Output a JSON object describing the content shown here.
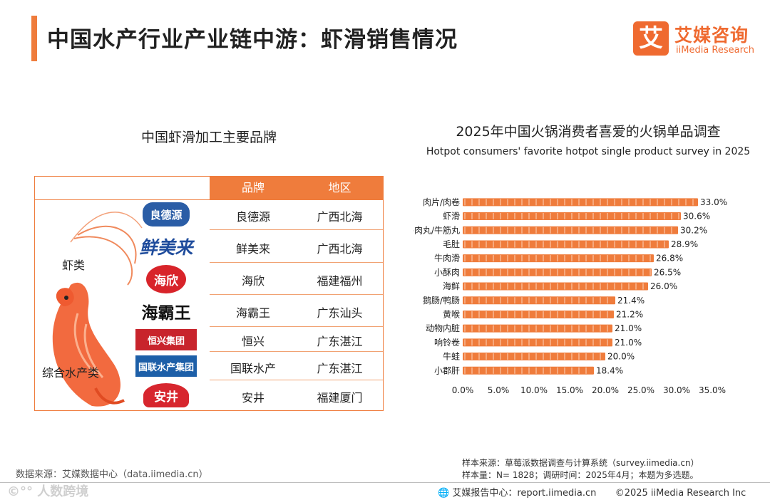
{
  "page": {
    "title": "中国水产行业产业链中游：虾滑销售情况",
    "logo_mark": "艾",
    "logo_cn": "艾媒咨询",
    "logo_en": "iiMedia Research"
  },
  "brands_table": {
    "title": "中国虾滑加工主要品牌",
    "headers": {
      "brand": "品牌",
      "region": "地区"
    },
    "categories": {
      "shrimp": "虾类",
      "aquatic": "综合水产类"
    },
    "rows": [
      {
        "logo_text": "良德源",
        "brand": "良德源",
        "region": "广西北海"
      },
      {
        "logo_text": "鲜美来",
        "brand": "鲜美来",
        "region": "广西北海"
      },
      {
        "logo_text": "海欣",
        "brand": "海欣",
        "region": "福建福州"
      },
      {
        "logo_text": "海霸王",
        "brand": "海霸王",
        "region": "广东汕头"
      },
      {
        "logo_text": "恒兴集团",
        "brand": "恒兴",
        "region": "广东湛江"
      },
      {
        "logo_text": "国联水产集团",
        "brand": "国联水产",
        "region": "广东湛江"
      },
      {
        "logo_text": "安井",
        "brand": "安井",
        "region": "福建厦门"
      }
    ]
  },
  "chart_data": {
    "type": "bar",
    "orientation": "horizontal",
    "title": "2025年中国火锅消费者喜爱的火锅单品调查",
    "subtitle": "Hotpot consumers' favorite hotpot single product survey in 2025",
    "categories": [
      "肉片/肉卷",
      "虾滑",
      "牛肉丸/牛筋丸",
      "毛肚",
      "牛肉滑",
      "小酥肉",
      "海鲜",
      "鹅肠/鸭肠",
      "黄喉",
      "动物内脏",
      "响铃卷",
      "牛蛙",
      "小郡肝"
    ],
    "values": [
      33.0,
      30.6,
      30.2,
      28.9,
      26.8,
      26.5,
      26.0,
      21.4,
      21.2,
      21.0,
      21.0,
      20.0,
      18.4
    ],
    "value_labels": [
      "33.0%",
      "30.6%",
      "30.2%",
      "28.9%",
      "26.8%",
      "26.5%",
      "26.0%",
      "21.4%",
      "21.2%",
      "21.0%",
      "21.0%",
      "20.0%",
      "18.4%"
    ],
    "xlim": [
      0,
      35
    ],
    "xticks": [
      "0.0%",
      "5.0%",
      "10.0%",
      "15.0%",
      "20.0%",
      "25.0%",
      "30.0%",
      "35.0%"
    ],
    "grid": false,
    "bar_color": "#ef7c3c"
  },
  "footer": {
    "source_left": "数据来源：艾媒数据中心（data.iimedia.cn）",
    "sample_source": "样本来源：草莓派数据调查与计算系统（survey.iimedia.cn）",
    "sample_size": "样本量：N= 1828；调研时间：2025年4月；本题为多选题。",
    "report_center": "艾媒报告中心：report.iimedia.cn",
    "copyright": "©2025  iiMedia Research  Inc",
    "watermark": "©°° 人数跨境"
  }
}
